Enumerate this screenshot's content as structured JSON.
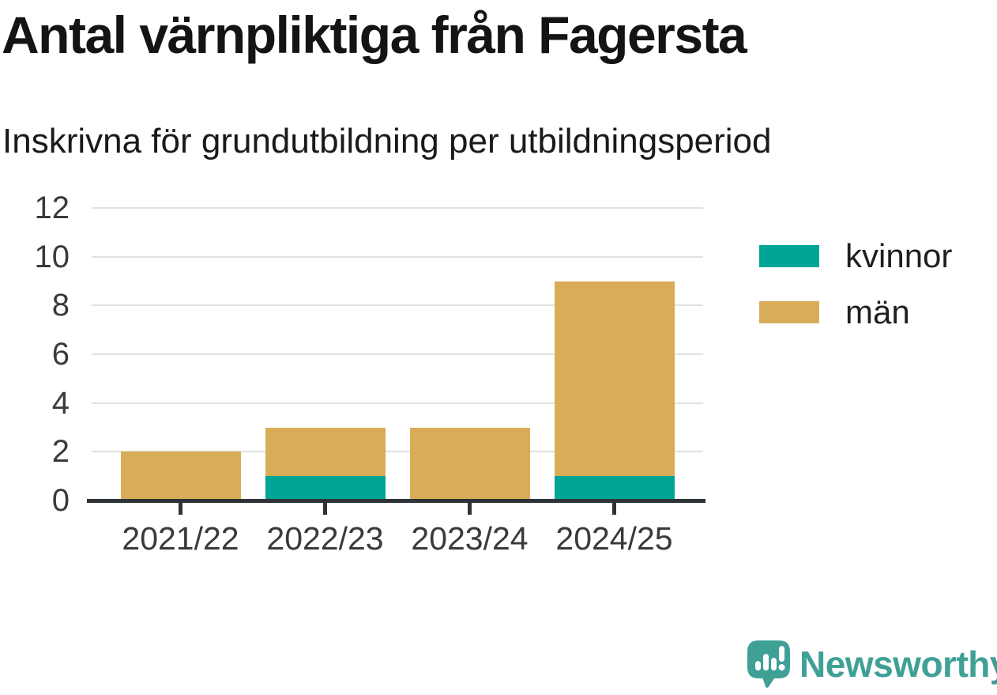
{
  "header": {
    "title": "Antal värnpliktiga från Fagersta",
    "subtitle": "Inskrivna för grundutbildning per utbildningsperiod"
  },
  "chart_data": {
    "type": "bar",
    "stacked": true,
    "title": "Antal värnpliktiga från Fagersta",
    "subtitle": "Inskrivna för grundutbildning per utbildningsperiod",
    "categories": [
      "2021/22",
      "2022/23",
      "2023/24",
      "2024/25"
    ],
    "series": [
      {
        "name": "kvinnor",
        "color": "#00a596",
        "values": [
          0,
          1,
          0,
          1
        ]
      },
      {
        "name": "män",
        "color": "#d9ad58",
        "values": [
          2,
          2,
          3,
          8
        ]
      }
    ],
    "totals": [
      2,
      3,
      3,
      9
    ],
    "xlabel": "",
    "ylabel": "",
    "ylim": [
      0,
      12
    ],
    "yticks": [
      0,
      2,
      4,
      6,
      8,
      10,
      12
    ],
    "grid": true,
    "legend_position": "right"
  },
  "footer": {
    "brand": "Newsworthy"
  },
  "colors": {
    "kvinnor": "#00a596",
    "man": "#d9ad58",
    "title_text": "#141414",
    "axis_text": "#3a3a3a",
    "legend_text": "#1f1f1f",
    "gridline": "#e1e1e1",
    "axis_line": "#2e3338",
    "brand": "#3fa096",
    "background": "#ffffff"
  }
}
